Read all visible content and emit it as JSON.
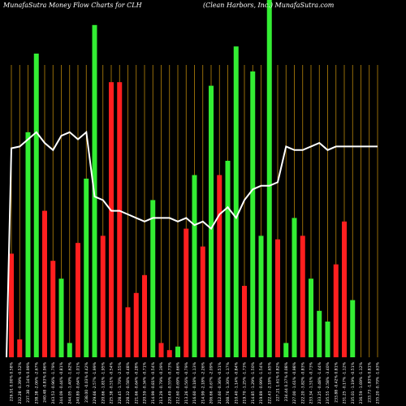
{
  "chart_data": {
    "type": "bar",
    "title_left": "MunafaSutra  Money Flow  Charts for CLH",
    "title_right": "(Clean  Harbors,  Inc.) MunafaSutra.com",
    "categories": [
      "226.91 0.00% 0.58%",
      "232.28 -0.39% -0.52%",
      "237.38 -2.14% 0.99%",
      "238.38 -2.06% -2.67%",
      "240.48 -0.83% 0.96%",
      "243.53 -0.96% -1.79%",
      "244.09 -0.44% -0.81%",
      "244.05 -1.40% -1.62%",
      "240.89 -0.64% -1.01%",
      "238.00 -0.03% 0.42%",
      "229.66 -2.57% -1.99%",
      "220.66 -1.81% -1.95%",
      "225.38 -0.51% -0.54%",
      "228.45 -1.70% -2.55%",
      "228.32 -0.58% -0.48%",
      "221.66 -0.64% -0.28%",
      "220.59 -0.34% -0.71%",
      "214.99 -0.81% -0.54%",
      "213.29 -0.79% -0.39%",
      "220.49 -0.55% -0.73%",
      "212.60 -0.69% -0.66%",
      "213.26 -0.56% -0.79%",
      "216.60 -0.18% -1.13%",
      "214.99 -2.18% -2.26%",
      "206.66 -0.67% -2.09%",
      "212.60 -0.36% -0.51%",
      "208.76 -1.30% -1.17%",
      "210.40 -1.14% -0.84%",
      "219.70 -1.25% -1.73%",
      "214.85 -1.29% -1.50%",
      "219.89 -0.99% -1.54%",
      "222.43 -2.18% -1.65%",
      "227.21 1.61% 0.82%",
      "234.44 0.37% 0.08%",
      "227.00 -1.61% -0.98%",
      "222.20 -3.82% -0.83%",
      "233.34 -1.51% -0.73%",
      "233.25 -0.48% -1.44%",
      "235.55 -2.58% -3.40%",
      "233.88 -0.42% 0.81%",
      "231.25 -0.17% -1.12%",
      "235.01 -1.19% -0.51%",
      "236.59 -1.69% -1.12%",
      "233.73 -1.83% 0.81%",
      "235.20 -0.70% -1.63%"
    ],
    "bar_colors": [
      "red",
      "red",
      "green",
      "green",
      "red",
      "red",
      "green",
      "green",
      "red",
      "green",
      "green",
      "red",
      "red",
      "red",
      "red",
      "red",
      "red",
      "green",
      "red",
      "red",
      "green",
      "red",
      "green",
      "red",
      "green",
      "red",
      "green",
      "green",
      "red",
      "green",
      "green",
      "green",
      "red",
      "green",
      "green",
      "red",
      "green",
      "green",
      "green",
      "red",
      "red",
      "green",
      "green",
      "red",
      "green"
    ],
    "bar_values": [
      0.29,
      0.05,
      0.63,
      0.85,
      0.41,
      0.27,
      0.22,
      0.04,
      0.32,
      0.5,
      0.93,
      0.34,
      0.77,
      0.77,
      0.14,
      0.18,
      0.23,
      0.44,
      0.04,
      0.02,
      0.03,
      0.36,
      0.51,
      0.31,
      0.76,
      0.51,
      0.55,
      0.87,
      0.2,
      0.8,
      0.34,
      1.0,
      0.33,
      0.04,
      0.39,
      0.34,
      0.22,
      0.13,
      0.1,
      0.26,
      0.38,
      0.16,
      0.0,
      0.0,
      0.0
    ],
    "line_values": [
      0.585,
      0.59,
      0.61,
      0.63,
      0.6,
      0.58,
      0.62,
      0.63,
      0.61,
      0.63,
      0.45,
      0.44,
      0.41,
      0.41,
      0.4,
      0.39,
      0.38,
      0.39,
      0.39,
      0.39,
      0.38,
      0.39,
      0.37,
      0.38,
      0.36,
      0.4,
      0.42,
      0.39,
      0.44,
      0.47,
      0.48,
      0.48,
      0.49,
      0.59,
      0.58,
      0.58,
      0.59,
      0.6,
      0.58,
      0.59,
      0.59,
      0.59,
      0.59,
      0.59,
      0.59
    ],
    "ylim": [
      0,
      1
    ]
  },
  "colors": {
    "background": "#000000",
    "gridline": "#b8860b",
    "bar_green": "#33ee33",
    "bar_red": "#ff1f1f",
    "line": "#ffffff"
  }
}
